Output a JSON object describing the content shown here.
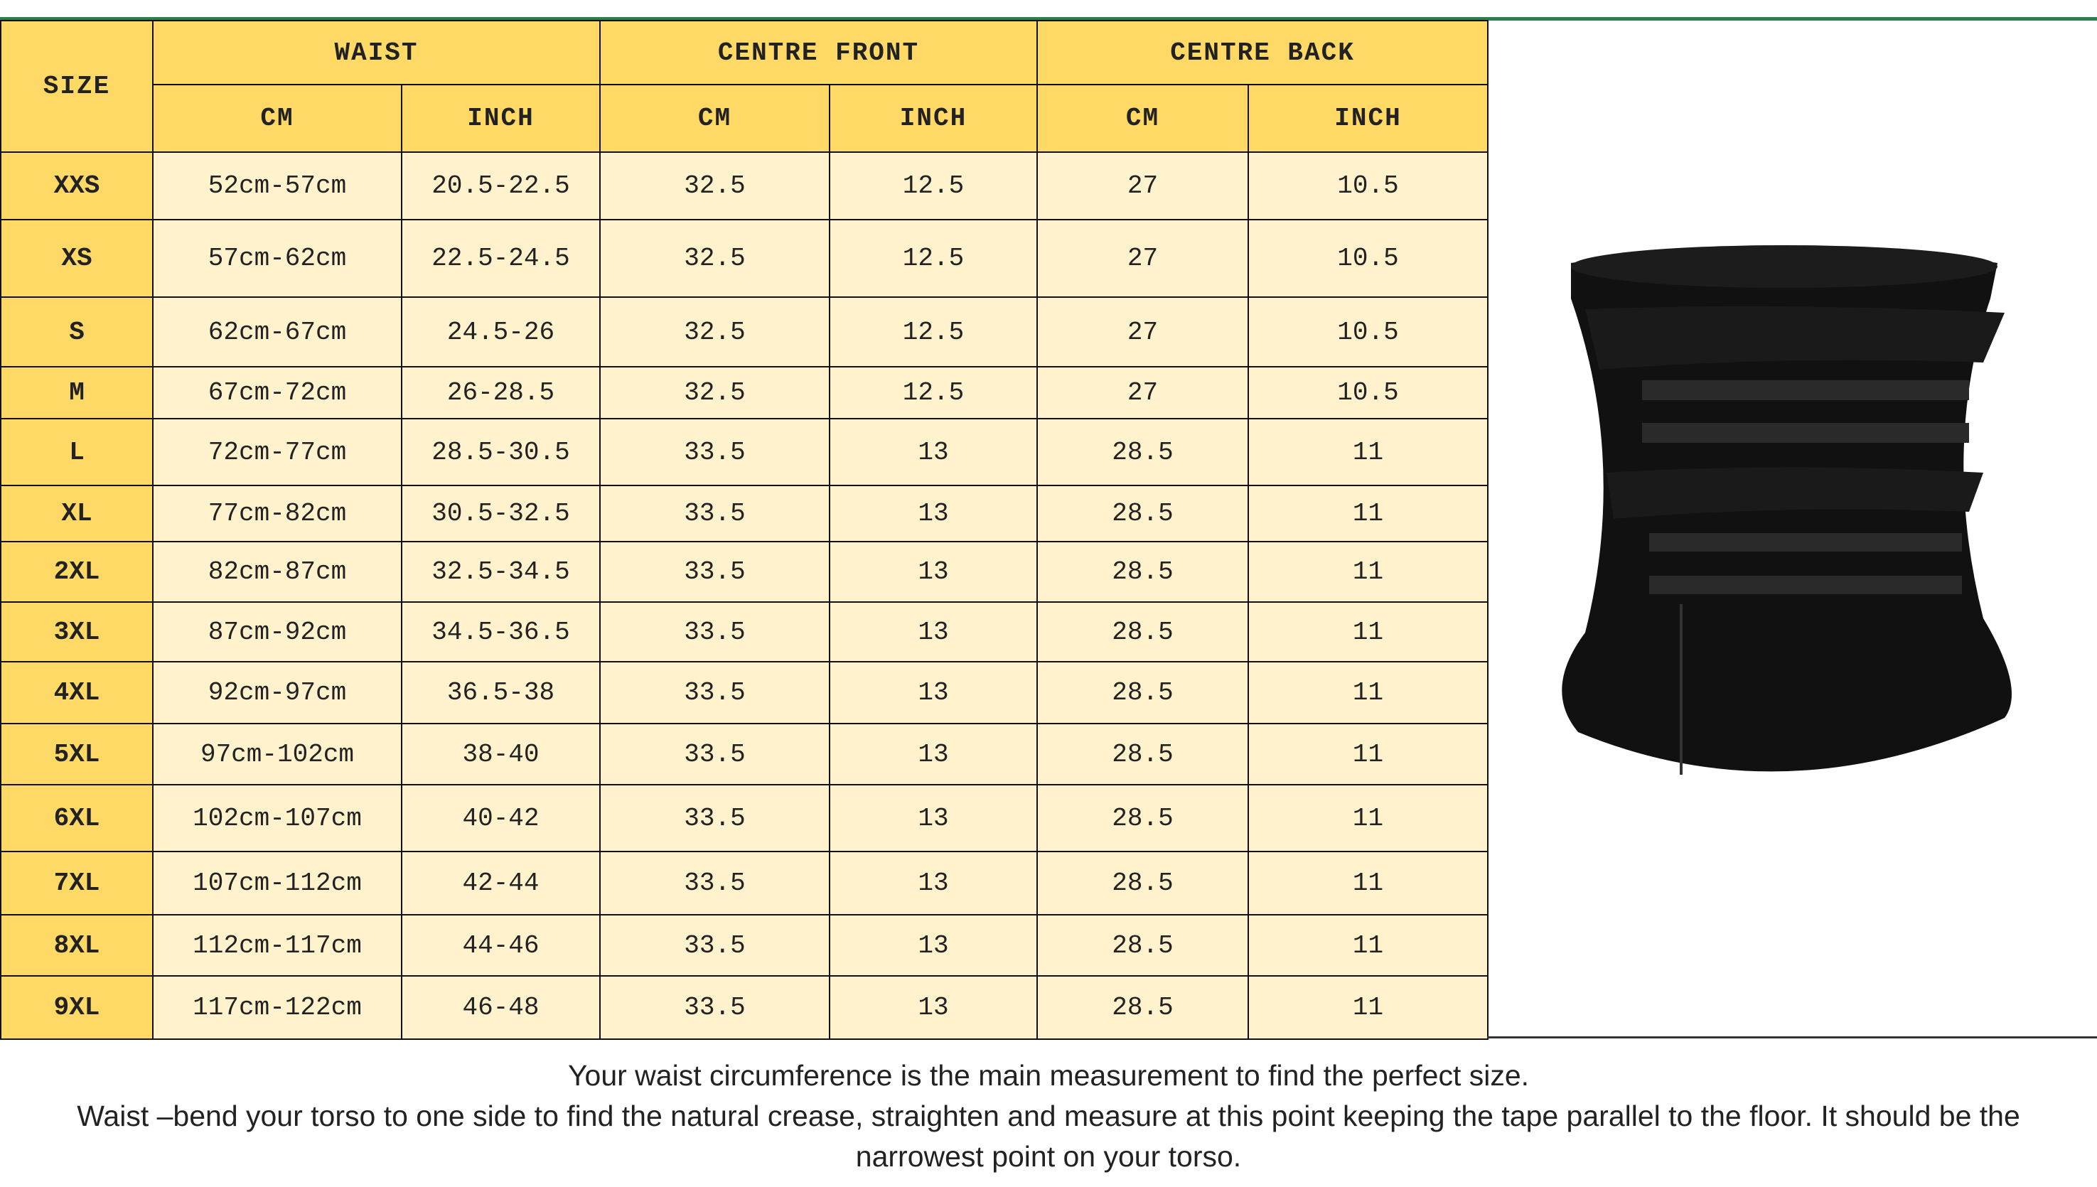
{
  "headers": {
    "size": "SIZE",
    "waist": "WAIST",
    "centre_front": "CENTRE FRONT",
    "centre_back": "CENTRE BACK",
    "cm": "CM",
    "inch": "INCH"
  },
  "rows": [
    {
      "size": "XXS",
      "waist_cm": "52cm-57cm",
      "waist_inch": "20.5-22.5",
      "front_cm": "32.5",
      "front_inch": "12.5",
      "back_cm": "27",
      "back_inch": "10.5"
    },
    {
      "size": "XS",
      "waist_cm": "57cm-62cm",
      "waist_inch": "22.5-24.5",
      "front_cm": "32.5",
      "front_inch": "12.5",
      "back_cm": "27",
      "back_inch": "10.5"
    },
    {
      "size": "S",
      "waist_cm": "62cm-67cm",
      "waist_inch": "24.5-26",
      "front_cm": "32.5",
      "front_inch": "12.5",
      "back_cm": "27",
      "back_inch": "10.5"
    },
    {
      "size": "M",
      "waist_cm": "67cm-72cm",
      "waist_inch": "26-28.5",
      "front_cm": "32.5",
      "front_inch": "12.5",
      "back_cm": "27",
      "back_inch": "10.5"
    },
    {
      "size": "L",
      "waist_cm": "72cm-77cm",
      "waist_inch": "28.5-30.5",
      "front_cm": "33.5",
      "front_inch": "13",
      "back_cm": "28.5",
      "back_inch": "11"
    },
    {
      "size": "XL",
      "waist_cm": "77cm-82cm",
      "waist_inch": "30.5-32.5",
      "front_cm": "33.5",
      "front_inch": "13",
      "back_cm": "28.5",
      "back_inch": "11"
    },
    {
      "size": "2XL",
      "waist_cm": "82cm-87cm",
      "waist_inch": "32.5-34.5",
      "front_cm": "33.5",
      "front_inch": "13",
      "back_cm": "28.5",
      "back_inch": "11"
    },
    {
      "size": "3XL",
      "waist_cm": "87cm-92cm",
      "waist_inch": "34.5-36.5",
      "front_cm": "33.5",
      "front_inch": "13",
      "back_cm": "28.5",
      "back_inch": "11"
    },
    {
      "size": "4XL",
      "waist_cm": "92cm-97cm",
      "waist_inch": "36.5-38",
      "front_cm": "33.5",
      "front_inch": "13",
      "back_cm": "28.5",
      "back_inch": "11"
    },
    {
      "size": "5XL",
      "waist_cm": "97cm-102cm",
      "waist_inch": "38-40",
      "front_cm": "33.5",
      "front_inch": "13",
      "back_cm": "28.5",
      "back_inch": "11"
    },
    {
      "size": "6XL",
      "waist_cm": "102cm-107cm",
      "waist_inch": "40-42",
      "front_cm": "33.5",
      "front_inch": "13",
      "back_cm": "28.5",
      "back_inch": "11"
    },
    {
      "size": "7XL",
      "waist_cm": "107cm-112cm",
      "waist_inch": "42-44",
      "front_cm": "33.5",
      "front_inch": "13",
      "back_cm": "28.5",
      "back_inch": "11"
    },
    {
      "size": "8XL",
      "waist_cm": "112cm-117cm",
      "waist_inch": "44-46",
      "front_cm": "33.5",
      "front_inch": "13",
      "back_cm": "28.5",
      "back_inch": "11"
    },
    {
      "size": "9XL",
      "waist_cm": "117cm-122cm",
      "waist_inch": "46-48",
      "front_cm": "33.5",
      "front_inch": "13",
      "back_cm": "28.5",
      "back_inch": "11"
    }
  ],
  "notes": {
    "line1": "Your waist circumference is the main measurement to find the perfect size.",
    "line2": "Waist –bend your torso to one side to find the natural crease, straighten and measure at this point keeping the tape parallel to the floor. It should be the narrowest point on your torso."
  },
  "colors": {
    "header": "#FFD966",
    "cell": "#FFF2CC",
    "rule": "#2e7d4f"
  },
  "image": {
    "icon": "waist-trainer-product-photo"
  }
}
